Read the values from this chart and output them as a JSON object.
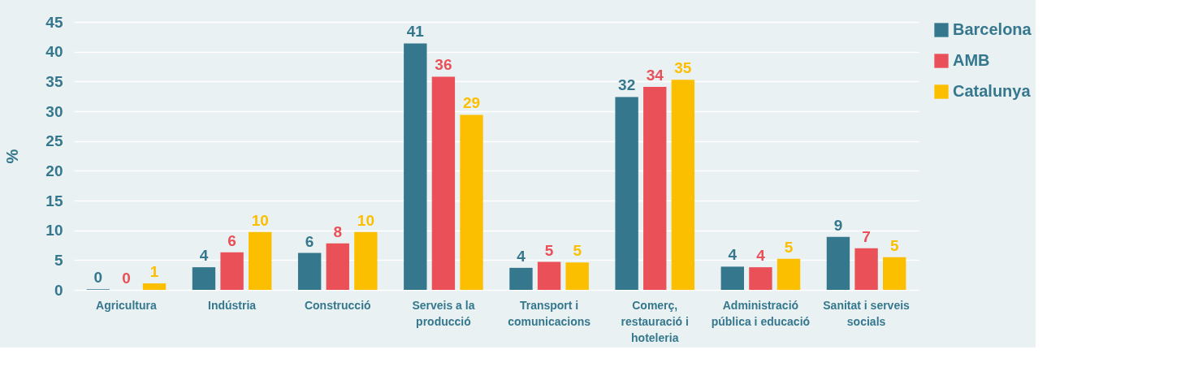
{
  "chart_data": {
    "type": "bar",
    "ylabel": "%",
    "categories": [
      "Agricultura",
      "Indústria",
      "Construcció",
      "Serveis a la producció",
      "Transport i comunicacions",
      "Comerç, restauració i hoteleria",
      "Administració pública i educació",
      "Sanitat i serveis socials"
    ],
    "series": [
      {
        "name": "Barcelona",
        "color": "#35788e",
        "values": [
          0.1,
          3.8,
          6.2,
          41.4,
          3.7,
          32.4,
          3.9,
          8.9
        ],
        "value_labels": [
          "0",
          "4",
          "6",
          "41",
          "4",
          "32",
          "4",
          "9"
        ]
      },
      {
        "name": "AMB",
        "color": "#e95058",
        "values": [
          0.0,
          6.3,
          7.8,
          35.8,
          4.7,
          34.1,
          3.8,
          7.0
        ],
        "value_labels": [
          "0",
          "6",
          "8",
          "36",
          "5",
          "34",
          "4",
          "7"
        ]
      },
      {
        "name": "Catalunya",
        "color": "#fcbf00",
        "values": [
          1.1,
          9.7,
          9.7,
          29.4,
          4.6,
          35.3,
          5.2,
          5.5
        ],
        "value_labels": [
          "1",
          "10",
          "10",
          "29",
          "5",
          "35",
          "5",
          "5"
        ]
      }
    ],
    "ylim": [
      0,
      45
    ],
    "yticks": [
      0,
      5,
      10,
      15,
      20,
      25,
      30,
      35,
      40,
      45
    ],
    "grid": "y",
    "legend": "right"
  }
}
